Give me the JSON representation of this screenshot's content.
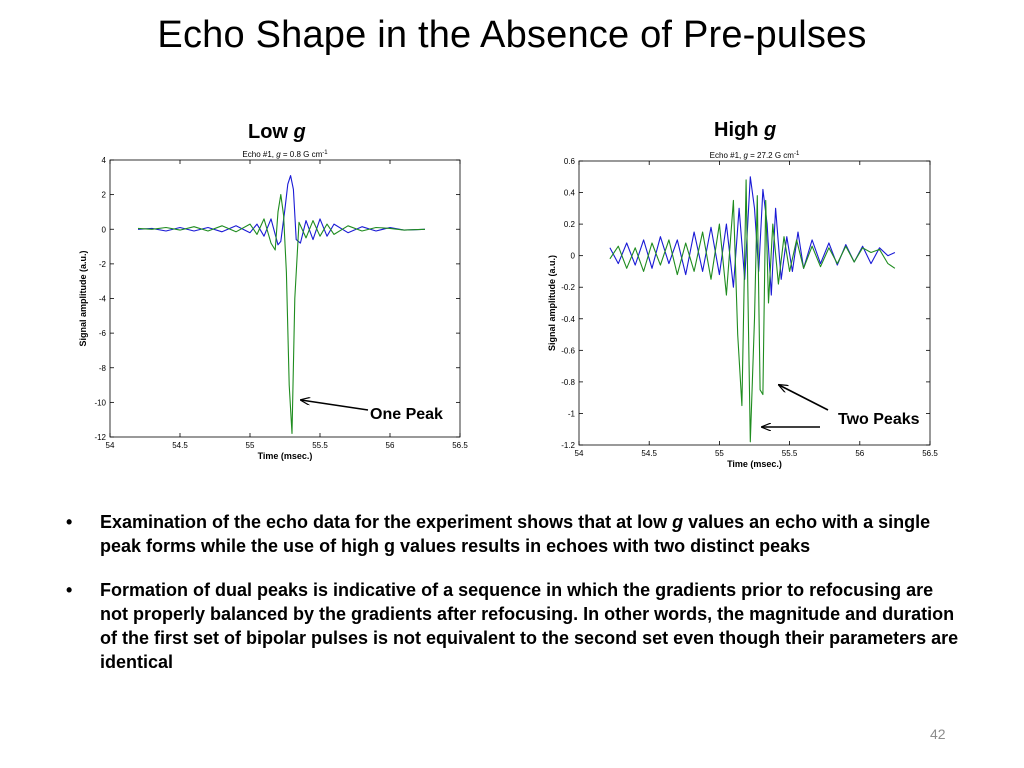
{
  "slide": {
    "title": "Echo Shape in the Absence of Pre-pulses",
    "number": "42"
  },
  "panels": {
    "left": {
      "head_text": "Low ",
      "head_italic": "g",
      "callout": "One Peak"
    },
    "right": {
      "head_text": "High ",
      "head_italic": "g",
      "callout": "Two Peaks"
    }
  },
  "bullets": [
    {
      "marker": "•",
      "before": "Examination of the echo data for the experiment shows that at low ",
      "italic": "g",
      "after": " values an echo with a single peak forms while the use of high g values results in echoes with two distinct peaks"
    },
    {
      "marker": "•",
      "text": "Formation of dual peaks is indicative of a sequence in which the gradients prior to refocusing are not properly balanced by the gradients after refocusing.  In other words, the magnitude and duration of the first set of bipolar pulses is not equivalent to the second set even though their parameters are identical"
    }
  ],
  "colors": {
    "blue": "#1a1ad6",
    "green": "#1f8c1f",
    "axis": "#000000",
    "background": "#ffffff"
  },
  "chart_data": [
    {
      "type": "line",
      "title_parts": [
        "Echo #1, ",
        "g",
        " = 0.8 G cm",
        "-1"
      ],
      "xlabel": "Time (msec.)",
      "ylabel": "Signal amplitude (a.u.)",
      "xlim": [
        54,
        56.5
      ],
      "ylim": [
        -12,
        4
      ],
      "xticks": [
        "54",
        "54.5",
        "55",
        "55.5",
        "56",
        "56.5"
      ],
      "yticks": [
        "4",
        "2",
        "0",
        "-2",
        "-4",
        "-6",
        "-8",
        "-10",
        "-12"
      ],
      "grid": false,
      "series": [
        {
          "color": "#1a1ad6",
          "x": [
            54.2,
            54.3,
            54.4,
            54.5,
            54.6,
            54.7,
            54.8,
            54.9,
            55.0,
            55.05,
            55.1,
            55.15,
            55.2,
            55.22,
            55.25,
            55.27,
            55.29,
            55.31,
            55.33,
            55.36,
            55.4,
            55.45,
            55.5,
            55.55,
            55.6,
            55.7,
            55.8,
            55.9,
            56.0,
            56.1,
            56.25
          ],
          "y": [
            0.0,
            0.05,
            -0.1,
            0.1,
            -0.1,
            0.1,
            -0.15,
            0.2,
            -0.2,
            0.3,
            -0.4,
            0.6,
            -0.9,
            -0.7,
            1.2,
            2.6,
            3.1,
            2.3,
            -0.6,
            -0.8,
            0.5,
            -0.6,
            0.6,
            -0.4,
            0.3,
            -0.2,
            0.15,
            -0.1,
            0.1,
            -0.05,
            0.0
          ]
        },
        {
          "color": "#1f8c1f",
          "x": [
            54.2,
            54.3,
            54.4,
            54.5,
            54.6,
            54.7,
            54.8,
            54.9,
            55.0,
            55.05,
            55.1,
            55.15,
            55.18,
            55.2,
            55.22,
            55.24,
            55.26,
            55.28,
            55.3,
            55.32,
            55.35,
            55.4,
            55.45,
            55.5,
            55.55,
            55.6,
            55.7,
            55.8,
            55.9,
            56.0,
            56.1,
            56.25
          ],
          "y": [
            0.05,
            0.0,
            0.1,
            -0.05,
            0.15,
            -0.1,
            0.2,
            -0.15,
            0.3,
            -0.3,
            0.6,
            -0.8,
            -1.2,
            1.0,
            2.0,
            0.8,
            -2.5,
            -9.0,
            -11.8,
            -4.0,
            0.4,
            -0.5,
            0.5,
            -0.4,
            0.3,
            -0.3,
            0.2,
            -0.1,
            0.1,
            0.05,
            -0.05,
            0.0
          ]
        }
      ]
    },
    {
      "type": "line",
      "title_parts": [
        "Echo #1, ",
        "g",
        " = 27.2 G cm",
        "-1"
      ],
      "xlabel": "Time (msec.)",
      "ylabel": "Signal amplitude (a.u.)",
      "xlim": [
        54,
        56.5
      ],
      "ylim": [
        -1.2,
        0.6
      ],
      "xticks": [
        "54",
        "54.5",
        "55",
        "55.5",
        "56",
        "56.5"
      ],
      "yticks": [
        "0.6",
        "0.4",
        "0.2",
        "0",
        "-0.2",
        "-0.4",
        "-0.6",
        "-0.8",
        "-1",
        "-1.2"
      ],
      "grid": false,
      "series": [
        {
          "color": "#1a1ad6",
          "x": [
            54.22,
            54.28,
            54.34,
            54.4,
            54.46,
            54.52,
            54.58,
            54.64,
            54.7,
            54.76,
            54.82,
            54.88,
            54.94,
            55.0,
            55.05,
            55.1,
            55.14,
            55.18,
            55.22,
            55.25,
            55.28,
            55.31,
            55.34,
            55.37,
            55.4,
            55.44,
            55.48,
            55.52,
            55.56,
            55.6,
            55.66,
            55.72,
            55.78,
            55.84,
            55.9,
            55.96,
            56.02,
            56.08,
            56.14,
            56.2,
            56.25
          ],
          "y": [
            0.05,
            -0.05,
            0.08,
            -0.06,
            0.1,
            -0.08,
            0.12,
            -0.05,
            0.1,
            -0.12,
            0.15,
            -0.1,
            0.18,
            -0.12,
            0.2,
            -0.2,
            0.3,
            -0.15,
            0.5,
            0.3,
            -0.1,
            0.42,
            0.2,
            -0.25,
            0.3,
            -0.15,
            0.12,
            -0.1,
            0.15,
            -0.08,
            0.1,
            -0.05,
            0.08,
            -0.06,
            0.07,
            -0.04,
            0.06,
            -0.05,
            0.05,
            0.0,
            0.02
          ]
        },
        {
          "color": "#1f8c1f",
          "x": [
            54.22,
            54.28,
            54.34,
            54.4,
            54.46,
            54.52,
            54.58,
            54.64,
            54.7,
            54.76,
            54.82,
            54.88,
            54.94,
            55.0,
            55.05,
            55.1,
            55.13,
            55.16,
            55.19,
            55.22,
            55.25,
            55.27,
            55.29,
            55.31,
            55.33,
            55.35,
            55.38,
            55.42,
            55.46,
            55.5,
            55.55,
            55.6,
            55.66,
            55.72,
            55.78,
            55.84,
            55.9,
            55.96,
            56.02,
            56.08,
            56.14,
            56.2,
            56.25
          ],
          "y": [
            -0.02,
            0.06,
            -0.08,
            0.05,
            -0.1,
            0.08,
            -0.06,
            0.1,
            -0.12,
            0.08,
            -0.1,
            0.15,
            -0.15,
            0.2,
            -0.25,
            0.35,
            -0.5,
            -0.95,
            0.48,
            -1.18,
            -0.4,
            0.38,
            -0.85,
            -0.88,
            0.35,
            -0.3,
            0.2,
            -0.18,
            0.12,
            -0.1,
            0.1,
            -0.08,
            0.06,
            -0.07,
            0.05,
            -0.05,
            0.06,
            -0.04,
            0.05,
            0.02,
            0.04,
            -0.05,
            -0.08
          ]
        }
      ]
    }
  ]
}
